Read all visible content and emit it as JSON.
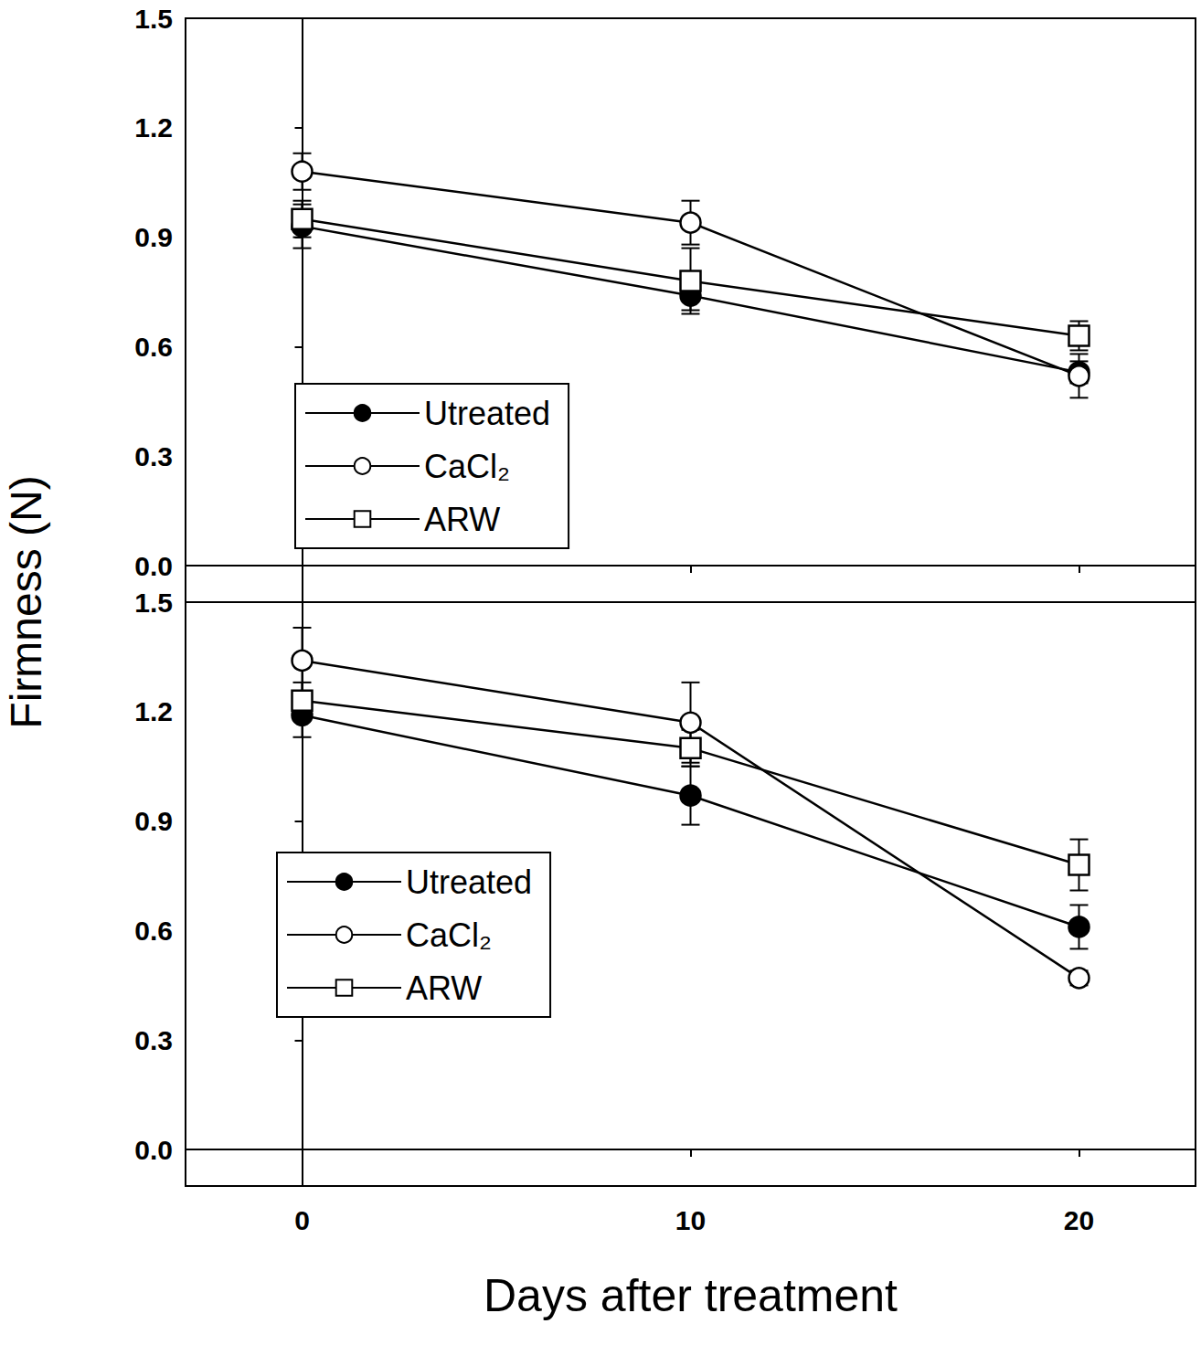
{
  "chart_data": [
    {
      "type": "line",
      "ylabel": "Firmness (N)",
      "x": [
        0,
        10,
        20
      ],
      "xlim": [
        -3,
        23
      ],
      "xticks": [
        0,
        10,
        20
      ],
      "ylim": [
        -0.1,
        1.5
      ],
      "yticks": [
        {
          "value": 0,
          "label": "0.0"
        },
        0.3,
        0.6,
        0.9,
        1.2,
        1.5
      ],
      "tick_labels": "y",
      "legend": "lower left",
      "series": [
        {
          "name": "Utreated",
          "color": "#000000",
          "marker": "filled_circle",
          "values": [
            0.93,
            0.74,
            0.53
          ],
          "errors": [
            0.06,
            0.04,
            0.03
          ]
        },
        {
          "name": "CaCl₂",
          "color": "#000000",
          "marker": "open_circle",
          "values": [
            1.08,
            0.94,
            0.52
          ],
          "errors": [
            0.05,
            0.06,
            0.06
          ]
        },
        {
          "name": "ARW",
          "color": "#000000",
          "marker": "open_square",
          "values": [
            0.95,
            0.78,
            0.63
          ],
          "errors": [
            0.05,
            0.09,
            0.04
          ]
        }
      ]
    },
    {
      "type": "line",
      "xlabel": "Days after treatment",
      "x": [
        0,
        10,
        20
      ],
      "xlim": [
        -3,
        23
      ],
      "xticks": [
        0,
        10,
        20
      ],
      "ylim": [
        -0.1,
        1.5
      ],
      "yticks": [
        {
          "value": 0,
          "label": "0.0"
        },
        0.3,
        0.6,
        0.9,
        1.2,
        1.5
      ],
      "legend": "lower left",
      "series": [
        {
          "name": "Utreated",
          "color": "#000000",
          "marker": "filled_circle",
          "values": [
            1.19,
            0.97,
            0.61
          ],
          "errors": [
            0.06,
            0.08,
            0.06
          ]
        },
        {
          "name": "CaCl₂",
          "color": "#000000",
          "marker": "open_circle",
          "values": [
            1.34,
            1.17,
            0.47
          ],
          "errors": [
            0.09,
            0.11,
            0.02
          ]
        },
        {
          "name": "ARW",
          "color": "#000000",
          "marker": "open_square",
          "values": [
            1.23,
            1.1,
            0.78
          ],
          "errors": [
            0.05,
            0.05,
            0.07
          ]
        }
      ]
    }
  ]
}
